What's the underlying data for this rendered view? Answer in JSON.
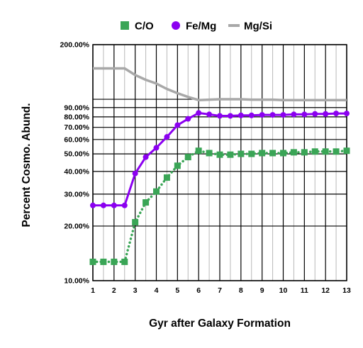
{
  "chart_data": {
    "type": "line",
    "xlabel": "Gyr after Galaxy Formation",
    "ylabel": "Percent Cosmo. Abund.",
    "y_scale": "log",
    "ylim": [
      10,
      200
    ],
    "xlim": [
      1,
      13
    ],
    "x_ticks": [
      "1",
      "2",
      "3",
      "4",
      "5",
      "6",
      "7",
      "8",
      "9",
      "10",
      "11",
      "12",
      "13"
    ],
    "y_ticks": [
      {
        "value": 200,
        "label": "200.00%"
      },
      {
        "value": 90,
        "label": "90.00%"
      },
      {
        "value": 80,
        "label": "80.00%"
      },
      {
        "value": 70,
        "label": "70.00%"
      },
      {
        "value": 60,
        "label": "60.00%"
      },
      {
        "value": 50,
        "label": "50.00%"
      },
      {
        "value": 40,
        "label": "40.00%"
      },
      {
        "value": 30,
        "label": "30.00%"
      },
      {
        "value": 20,
        "label": "20.00%"
      },
      {
        "value": 10,
        "label": "10.00%"
      }
    ],
    "grid": "on",
    "legend_position": "top",
    "series": [
      {
        "name": "C/O",
        "color": "#3aa556",
        "marker": "square",
        "line": "dotted",
        "x": [
          1,
          1.5,
          2,
          2.5,
          3,
          3.5,
          4,
          4.5,
          5,
          5.5,
          6,
          6.5,
          7,
          7.5,
          8,
          8.5,
          9,
          9.5,
          10,
          10.5,
          11,
          11.5,
          12,
          12.5,
          13
        ],
        "y": [
          12.7,
          12.7,
          12.7,
          12.7,
          21,
          27,
          31,
          37,
          43,
          48,
          52,
          50.5,
          49.5,
          49.5,
          50,
          50,
          50.5,
          50.5,
          50.5,
          51,
          51,
          51.5,
          51.5,
          51.5,
          52
        ]
      },
      {
        "name": "Fe/Mg",
        "color": "#8b00f0",
        "marker": "circle",
        "line": "solid",
        "x": [
          1,
          1.5,
          2,
          2.5,
          3,
          3.5,
          4,
          4.5,
          5,
          5.5,
          6,
          6.5,
          7,
          7.5,
          8,
          8.5,
          9,
          9.5,
          10,
          10.5,
          11,
          11.5,
          12,
          12.5,
          13
        ],
        "y": [
          26,
          26,
          26,
          26,
          39,
          48,
          54,
          62,
          72,
          78,
          84,
          82.5,
          81,
          81,
          81.5,
          81.5,
          82,
          82,
          82,
          82.5,
          82.5,
          83,
          83,
          83.5,
          83.5
        ]
      },
      {
        "name": "Mg/Si",
        "color": "#a8a8a8",
        "marker": "none",
        "line": "solid",
        "x": [
          1,
          1.5,
          2,
          2.5,
          3,
          3.5,
          4,
          4.5,
          5,
          5.5,
          6,
          6.5,
          7,
          7.5,
          8,
          8.5,
          9,
          9.5,
          10,
          10.5,
          11,
          11.5,
          12,
          12.5,
          13
        ],
        "y": [
          148,
          148,
          148,
          148,
          136,
          128,
          122,
          114,
          108,
          103,
          99,
          99.5,
          100,
          100,
          100,
          99.5,
          99.5,
          99.5,
          99,
          99,
          99,
          99,
          99,
          99,
          99
        ]
      }
    ]
  }
}
